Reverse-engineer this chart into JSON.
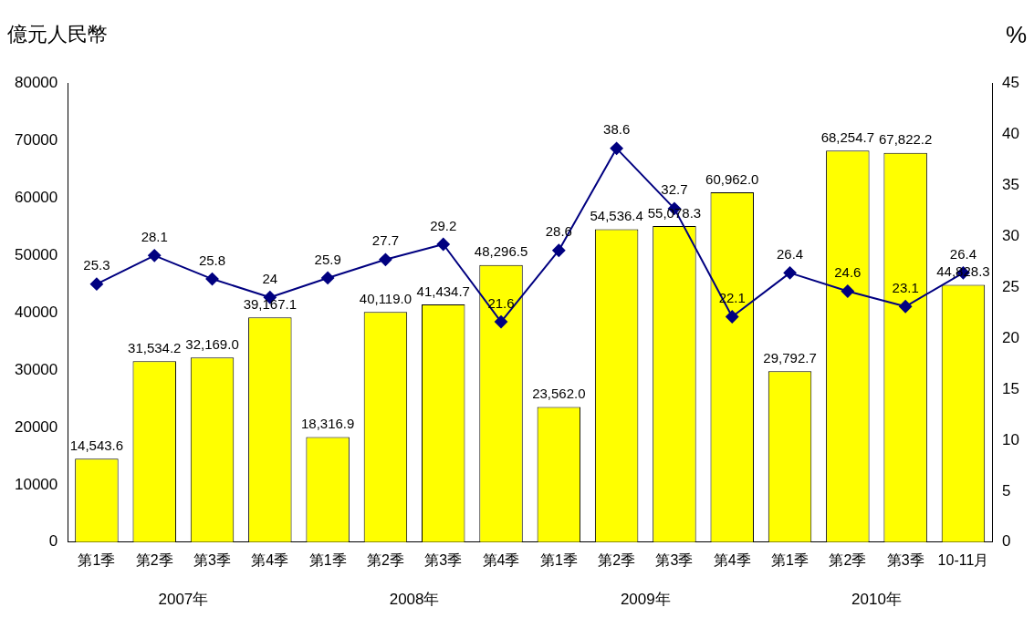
{
  "chart_data": {
    "type": "bar",
    "ylabel": "億元人民幣",
    "y2label": "%",
    "categories": [
      "第1季",
      "第2季",
      "第3季",
      "第4季",
      "第1季",
      "第2季",
      "第3季",
      "第4季",
      "第1季",
      "第2季",
      "第3季",
      "第4季",
      "第1季",
      "第2季",
      "第3季",
      "10-11月"
    ],
    "series": [
      {
        "color": "#ffff00",
        "values": [
          14543.6,
          31534.2,
          32169.0,
          39167.1,
          18316.9,
          40119.0,
          41434.7,
          48296.5,
          23562.0,
          54536.4,
          55078.3,
          60962.0,
          29792.7,
          68254.7,
          67822.2,
          44828.3
        ],
        "value_labels": [
          "14,543.6",
          "31,534.2",
          "32,169.0",
          "39,167.1",
          "18,316.9",
          "40,119.0",
          "41,434.7",
          "48,296.5",
          "23,562.0",
          "54,536.4",
          "55,078.3",
          "60,962.0",
          "29,792.7",
          "68,254.7",
          "67,822.2",
          "44,828.3"
        ]
      },
      {
        "type": "line",
        "axis": "y2",
        "color": "#000080",
        "marker": "diamond",
        "values": [
          25.3,
          28.1,
          25.8,
          24,
          25.9,
          27.7,
          29.2,
          21.6,
          28.6,
          38.6,
          32.7,
          22.1,
          26.4,
          24.6,
          23.1,
          26.4
        ],
        "value_labels": [
          "25.3",
          "28.1",
          "25.8",
          "24",
          "25.9",
          "27.7",
          "29.2",
          "21.6",
          "28.6",
          "38.6",
          "32.7",
          "22.1",
          "26.4",
          "24.6",
          "23.1",
          "26.4"
        ]
      }
    ],
    "ylim": [
      0,
      80000
    ],
    "yticks": [
      0,
      10000,
      20000,
      30000,
      40000,
      50000,
      60000,
      70000,
      80000
    ],
    "y2lim": [
      0,
      45
    ],
    "y2ticks": [
      0,
      5,
      10,
      15,
      20,
      25,
      30,
      35,
      40,
      45
    ],
    "annotations": [
      "2007年",
      "2008年",
      "2009年",
      "2010年"
    ],
    "grid": false,
    "legend": false
  }
}
